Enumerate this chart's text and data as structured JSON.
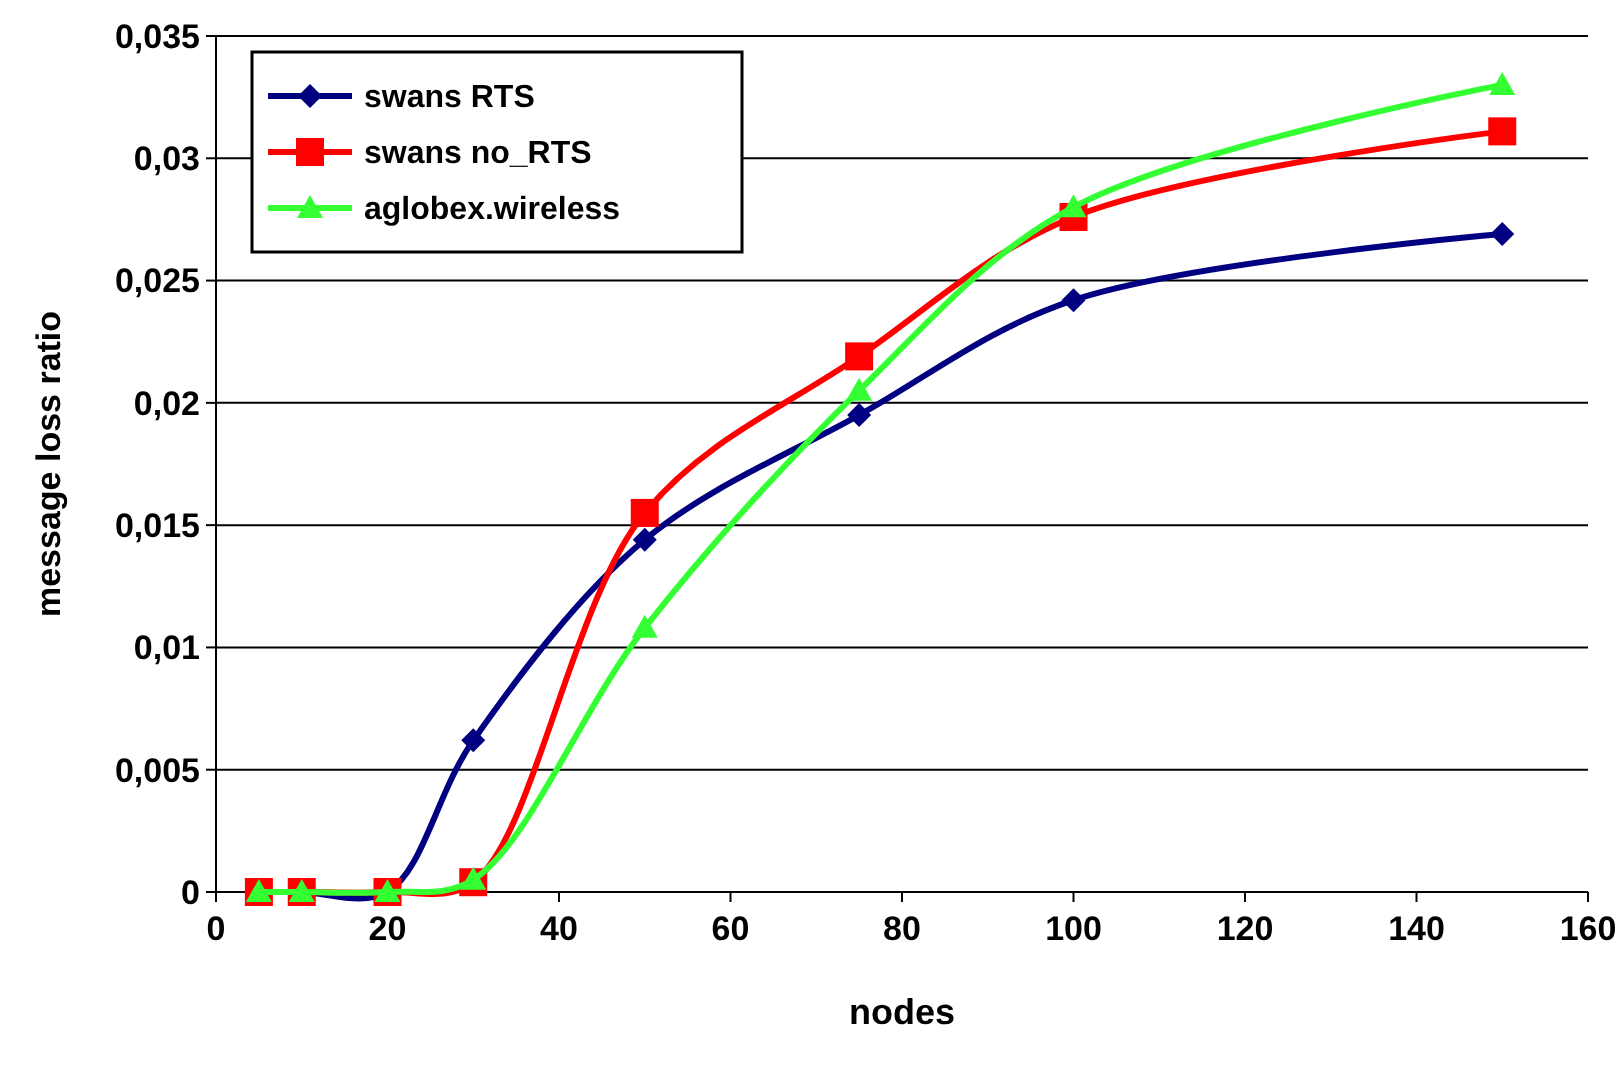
{
  "chart_data": {
    "type": "line",
    "xlabel": "nodes",
    "ylabel": "message loss ratio",
    "x": [
      5,
      10,
      20,
      30,
      50,
      75,
      100,
      150
    ],
    "series": [
      {
        "name": "swans RTS",
        "color": "#000080",
        "marker": "diamond",
        "values": [
          0,
          0,
          0,
          0.0062,
          0.0144,
          0.0195,
          0.0242,
          0.0269
        ]
      },
      {
        "name": "swans no_RTS",
        "color": "#ff0000",
        "marker": "square",
        "values": [
          0,
          0,
          0,
          0.0004,
          0.0155,
          0.0219,
          0.0276,
          0.0311
        ]
      },
      {
        "name": "aglobex.wireless",
        "color": "#33ff33",
        "marker": "triangle",
        "values": [
          0,
          0,
          0,
          0.0005,
          0.0108,
          0.0205,
          0.028,
          0.033
        ]
      }
    ],
    "xlim": [
      0,
      160
    ],
    "xticks": [
      0,
      20,
      40,
      60,
      80,
      100,
      120,
      140,
      160
    ],
    "ylim": [
      0,
      0.035
    ],
    "yticks": [
      0,
      {
        "value": 0.005,
        "label": "0,005"
      },
      {
        "value": 0.01,
        "label": "0,01"
      },
      {
        "value": 0.015,
        "label": "0,015"
      },
      {
        "value": 0.02,
        "label": "0,02"
      },
      {
        "value": 0.025,
        "label": "0,025"
      },
      {
        "value": 0.03,
        "label": "0,03"
      },
      {
        "value": 0.035,
        "label": "0,035"
      }
    ],
    "grid": "y",
    "legend": "top left",
    "line_style": "solid"
  }
}
